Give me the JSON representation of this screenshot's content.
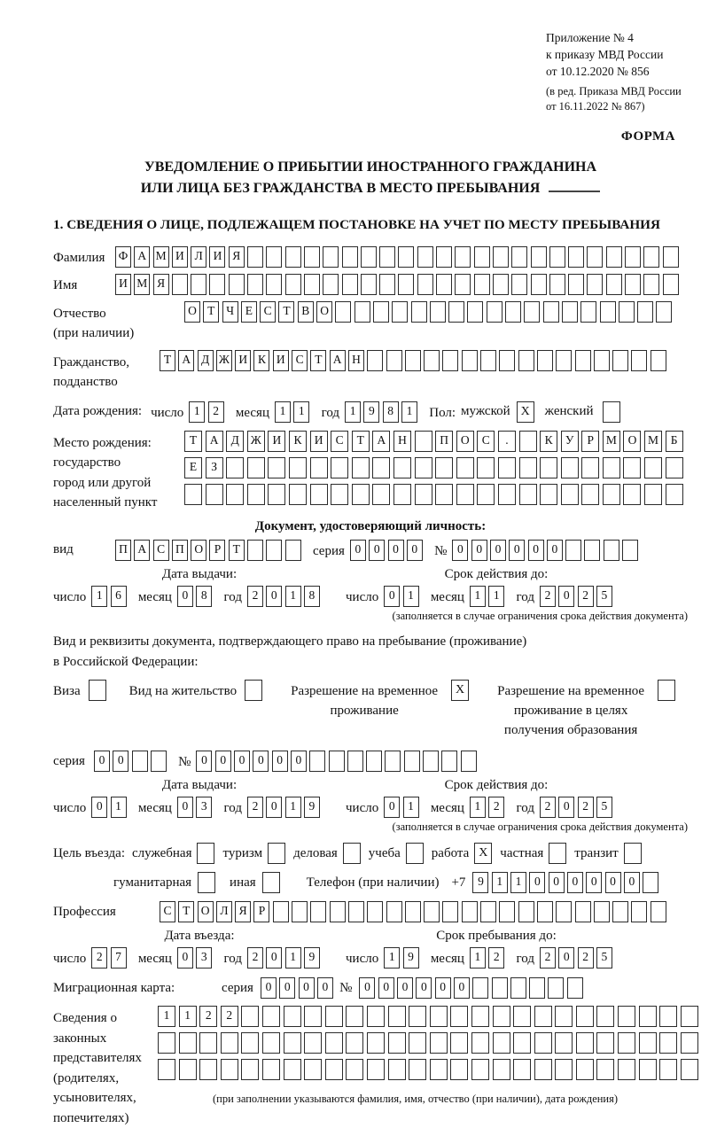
{
  "meta": {
    "appendix_lines": [
      "Приложение № 4",
      "к приказу МВД России",
      "от 10.12.2020 № 856"
    ],
    "revision_lines": [
      "(в ред. Приказа МВД России",
      "от 16.11.2022 № 867)"
    ],
    "forma": "ФОРМА"
  },
  "title": {
    "line1": "УВЕДОМЛЕНИЕ О ПРИБЫТИИ ИНОСТРАННОГО ГРАЖДАНИНА",
    "line2": "ИЛИ ЛИЦА БЕЗ ГРАЖДАНСТВА В МЕСТО ПРЕБЫВАНИЯ"
  },
  "section1": {
    "heading": "1. СВЕДЕНИЯ О ЛИЦЕ, ПОДЛЕЖАЩЕМ ПОСТАНОВКЕ НА УЧЕТ ПО МЕСТУ ПРЕБЫВАНИЯ",
    "surname": {
      "label": "Фамилия",
      "boxes": 30,
      "value": "ФАМИЛИЯ"
    },
    "given_name": {
      "label": "Имя",
      "boxes": 30,
      "value": "ИМЯ"
    },
    "patronymic": {
      "label": "Отчество",
      "sublabel": "(при наличии)",
      "boxes": 26,
      "value": "ОТЧЕСТВО"
    },
    "citizenship": {
      "label": "Гражданство,",
      "sublabel": "подданство",
      "boxes": 27,
      "value": "ТАДЖИКИСТАН"
    },
    "birth_date": {
      "label": "Дата рождения:",
      "day_label": "число",
      "day": {
        "boxes": 2,
        "value": "12"
      },
      "month_label": "месяц",
      "month": {
        "boxes": 2,
        "value": "11"
      },
      "year_label": "год",
      "year": {
        "boxes": 4,
        "value": "1981"
      }
    },
    "gender": {
      "label": "Пол:",
      "male_label": "мужской",
      "male": "X",
      "female_label": "женский",
      "female": ""
    },
    "birth_place": {
      "labels": [
        "Место рождения:",
        "государство",
        "город или другой",
        "населенный пункт"
      ],
      "line1": {
        "boxes": 24,
        "value": "ТАДЖИКИСТАН ПОС. КУРМОМБ"
      },
      "line2": {
        "boxes": 24,
        "value": "ЕЗ"
      },
      "line3": {
        "boxes": 24,
        "value": ""
      }
    },
    "identity_doc": {
      "heading": "Документ, удостоверяющий личность:",
      "kind_label": "вид",
      "kind": {
        "boxes": 10,
        "value": "ПАСПОРТ"
      },
      "series_label": "серия",
      "series": {
        "boxes": 4,
        "value": "0000"
      },
      "number_label": "№",
      "number": {
        "boxes": 10,
        "value": "000000"
      },
      "issue_heading": "Дата выдачи:",
      "issue": {
        "day_label": "число",
        "day": {
          "boxes": 2,
          "value": "16"
        },
        "month_label": "месяц",
        "month": {
          "boxes": 2,
          "value": "08"
        },
        "year_label": "год",
        "year": {
          "boxes": 4,
          "value": "2018"
        }
      },
      "valid_heading": "Срок действия до:",
      "valid": {
        "day_label": "число",
        "day": {
          "boxes": 2,
          "value": "01"
        },
        "month_label": "месяц",
        "month": {
          "boxes": 2,
          "value": "11"
        },
        "year_label": "год",
        "year": {
          "boxes": 4,
          "value": "2025"
        }
      },
      "note": "(заполняется в случае ограничения срока действия документа)"
    },
    "residence_doc": {
      "line1": "Вид и реквизиты документа, подтверждающего право на пребывание (проживание)",
      "line2": "в Российской Федерации:",
      "options": [
        {
          "label": "Виза",
          "checked": ""
        },
        {
          "label": "Вид на жительство",
          "checked": ""
        },
        {
          "label": "Разрешение на временное проживание",
          "checked": "X"
        },
        {
          "label": "Разрешение на временное проживание в целях получения образования",
          "checked": ""
        }
      ],
      "series_label": "серия",
      "series": {
        "boxes": 4,
        "value": "00"
      },
      "number_label": "№",
      "number": {
        "boxes": 15,
        "value": "000000"
      },
      "issue_heading": "Дата выдачи:",
      "issue": {
        "day_label": "число",
        "day": {
          "boxes": 2,
          "value": "01"
        },
        "month_label": "месяц",
        "month": {
          "boxes": 2,
          "value": "03"
        },
        "year_label": "год",
        "year": {
          "boxes": 4,
          "value": "2019"
        }
      },
      "valid_heading": "Срок действия до:",
      "valid": {
        "day_label": "число",
        "day": {
          "boxes": 2,
          "value": "01"
        },
        "month_label": "месяц",
        "month": {
          "boxes": 2,
          "value": "12"
        },
        "year_label": "год",
        "year": {
          "boxes": 4,
          "value": "2025"
        }
      },
      "note": "(заполняется в случае ограничения срока действия документа)"
    },
    "purpose": {
      "label": "Цель въезда:",
      "row1": [
        {
          "label": "служебная",
          "checked": ""
        },
        {
          "label": "туризм",
          "checked": ""
        },
        {
          "label": "деловая",
          "checked": ""
        },
        {
          "label": "учеба",
          "checked": ""
        },
        {
          "label": "работа",
          "checked": "X"
        },
        {
          "label": "частная",
          "checked": ""
        },
        {
          "label": "транзит",
          "checked": ""
        }
      ],
      "row2": [
        {
          "label": "гуманитарная",
          "checked": ""
        },
        {
          "label": "иная",
          "checked": ""
        }
      ],
      "phone_label": "Телефон (при наличии)",
      "phone_prefix": "+7",
      "phone": {
        "boxes": 10,
        "value": "911000000"
      }
    },
    "profession": {
      "label": "Профессия",
      "boxes": 27,
      "value": "СТОЛЯР"
    },
    "entry": {
      "issue_heading": "Дата въезда:",
      "issue": {
        "day_label": "число",
        "day": {
          "boxes": 2,
          "value": "27"
        },
        "month_label": "месяц",
        "month": {
          "boxes": 2,
          "value": "03"
        },
        "year_label": "год",
        "year": {
          "boxes": 4,
          "value": "2019"
        }
      },
      "valid_heading": "Срок пребывания до:",
      "valid": {
        "day_label": "число",
        "day": {
          "boxes": 2,
          "value": "19"
        },
        "month_label": "месяц",
        "month": {
          "boxes": 2,
          "value": "12"
        },
        "year_label": "год",
        "year": {
          "boxes": 4,
          "value": "2025"
        }
      }
    },
    "migration_card": {
      "label": "Миграционная карта:",
      "series_label": "серия",
      "series": {
        "boxes": 4,
        "value": "0000"
      },
      "number_label": "№",
      "number": {
        "boxes": 12,
        "value": "000000"
      }
    },
    "representatives": {
      "labels": [
        "Сведения о",
        "законных",
        "представителях",
        "(родителях,",
        "усыновителях,",
        "попечителях)"
      ],
      "line1": {
        "boxes": 26,
        "value": "1122"
      },
      "line2": {
        "boxes": 26,
        "value": ""
      },
      "line3": {
        "boxes": 26,
        "value": ""
      },
      "note": "(при заполнении указываются фамилия, имя, отчество (при наличии), дата рождения)"
    }
  }
}
